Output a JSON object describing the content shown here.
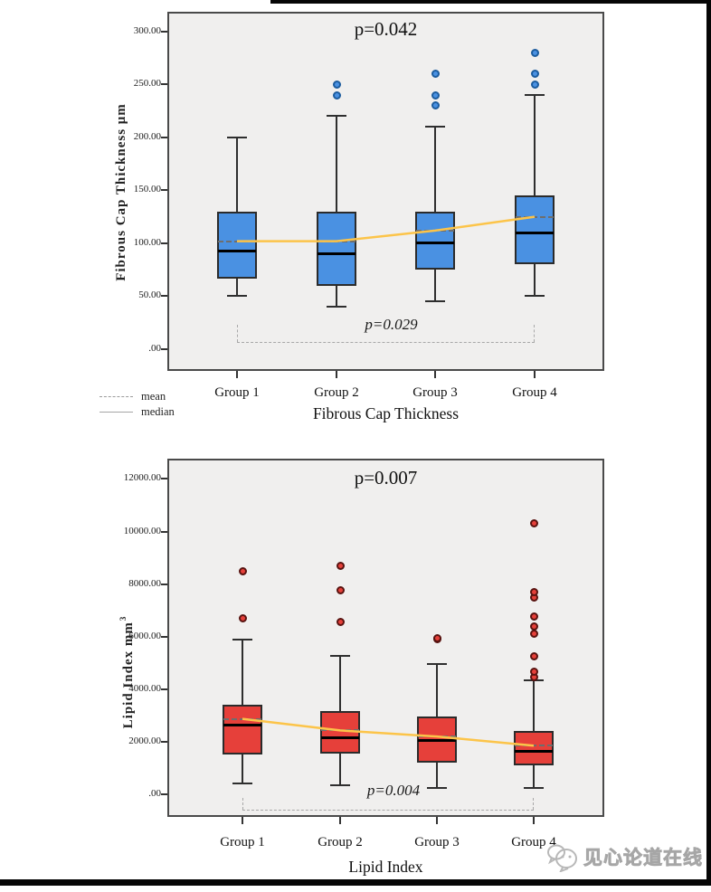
{
  "watermark": {
    "brand_text": "见心论道在线"
  },
  "legend": {
    "items": [
      {
        "label": "mean",
        "line_style": "dashed"
      },
      {
        "label": "median",
        "line_style": "solid"
      }
    ]
  },
  "chart_data": [
    {
      "type": "box",
      "title": "p=0.042",
      "xlabel": "Fibrous Cap Thickness",
      "ylabel": "Fibrous Cap Thickness μm",
      "ylabel_sup": "",
      "categories": [
        "Group 1",
        "Group 2",
        "Group 3",
        "Group 4"
      ],
      "y_ticks": {
        "labels": [
          "300.00",
          "250.00",
          "200.00",
          "150.00",
          "100.00",
          "50.00",
          ".00"
        ],
        "values": [
          300,
          250,
          200,
          150,
          100,
          50,
          0
        ]
      },
      "ylim": [
        0,
        300
      ],
      "grid": "off",
      "box_fill": "#4a91e2",
      "outlier_ring": "#1c5c9e",
      "series": [
        {
          "category": "Group 1",
          "whisker_low": 50,
          "q1": 67,
          "median": 93,
          "mean": 102,
          "q3": 130,
          "whisker_high": 200,
          "outliers": []
        },
        {
          "category": "Group 2",
          "whisker_low": 40,
          "q1": 60,
          "median": 90,
          "mean": 102,
          "q3": 130,
          "whisker_high": 220,
          "outliers": [
            240,
            250
          ]
        },
        {
          "category": "Group 3",
          "whisker_low": 45,
          "q1": 75,
          "median": 100,
          "mean": 112,
          "q3": 130,
          "whisker_high": 210,
          "outliers": [
            230,
            240,
            260
          ]
        },
        {
          "category": "Group 4",
          "whisker_low": 50,
          "q1": 80,
          "median": 110,
          "mean": 125,
          "q3": 145,
          "whisker_high": 240,
          "outliers": [
            250,
            260,
            280
          ]
        }
      ],
      "mean_trend": {
        "color": "#fcc449",
        "values": [
          102,
          102,
          112,
          125
        ]
      },
      "comparison_bracket": {
        "label": "p=0.029",
        "from_index": 0,
        "to_index": 3
      }
    },
    {
      "type": "box",
      "title": "p=0.007",
      "xlabel": "Lipid Index",
      "ylabel": "Lipid Index  mm",
      "ylabel_sup": "3",
      "categories": [
        "Group 1",
        "Group 2",
        "Group 3",
        "Group 4"
      ],
      "y_ticks": {
        "labels": [
          "12000.00",
          "10000.00",
          "8000.00",
          "6000.00",
          "4000.00",
          "2000.00",
          ".00"
        ],
        "values": [
          12000,
          10000,
          8000,
          6000,
          4000,
          2000,
          0
        ]
      },
      "ylim": [
        0,
        12000
      ],
      "grid": "off",
      "box_fill": "#e6403a",
      "outlier_ring": "#591310",
      "series": [
        {
          "category": "Group 1",
          "whisker_low": 400,
          "q1": 1500,
          "median": 2650,
          "mean": 2870,
          "q3": 3420,
          "whisker_high": 5900,
          "outliers": [
            6700,
            8500
          ]
        },
        {
          "category": "Group 2",
          "whisker_low": 350,
          "q1": 1550,
          "median": 2150,
          "mean": 2430,
          "q3": 3150,
          "whisker_high": 5250,
          "outliers": [
            6550,
            7750,
            8700
          ]
        },
        {
          "category": "Group 3",
          "whisker_low": 250,
          "q1": 1200,
          "median": 2050,
          "mean": 2200,
          "q3": 2950,
          "whisker_high": 4950,
          "outliers": [
            5900,
            5950
          ]
        },
        {
          "category": "Group 4",
          "whisker_low": 250,
          "q1": 1100,
          "median": 1650,
          "mean": 1850,
          "q3": 2400,
          "whisker_high": 4350,
          "outliers": [
            4450,
            4650,
            5250,
            6100,
            6400,
            6750,
            7500,
            7700,
            10300
          ]
        }
      ],
      "mean_trend": {
        "color": "#fcc449",
        "values": [
          2870,
          2430,
          2200,
          1850
        ]
      },
      "comparison_bracket": {
        "label": "p=0.004",
        "from_index": 0,
        "to_index": 3
      }
    }
  ]
}
